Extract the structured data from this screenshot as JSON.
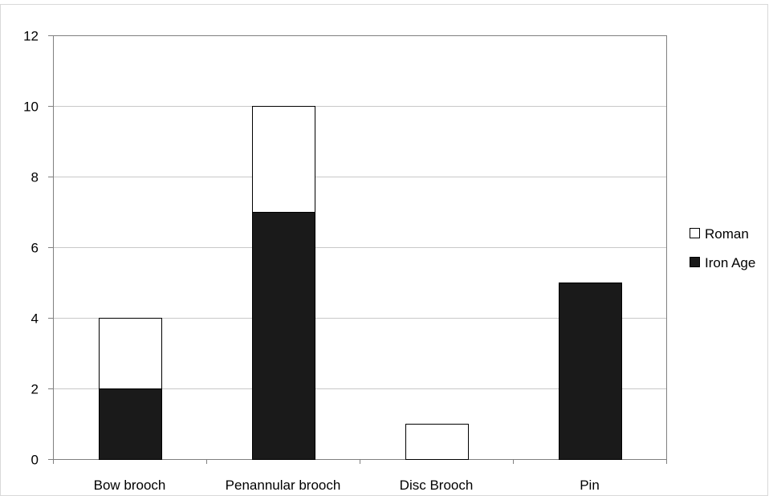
{
  "chart_data": {
    "type": "bar",
    "stacked": true,
    "categories": [
      "Bow  brooch",
      "Penannular brooch",
      "Disc Brooch",
      "Pin"
    ],
    "series": [
      {
        "name": "Iron Age",
        "values": [
          2,
          7,
          0,
          5
        ],
        "color": "#1a1a1a"
      },
      {
        "name": "Roman",
        "values": [
          2,
          3,
          1,
          0
        ],
        "color": "#ffffff"
      }
    ],
    "legend_order": [
      "Roman",
      "Iron Age"
    ],
    "ylim": [
      0,
      12
    ],
    "yticks": [
      0,
      2,
      4,
      6,
      8,
      10,
      12
    ],
    "grid": true,
    "legend_position": "right",
    "xlabel": "",
    "ylabel": "",
    "title": ""
  }
}
